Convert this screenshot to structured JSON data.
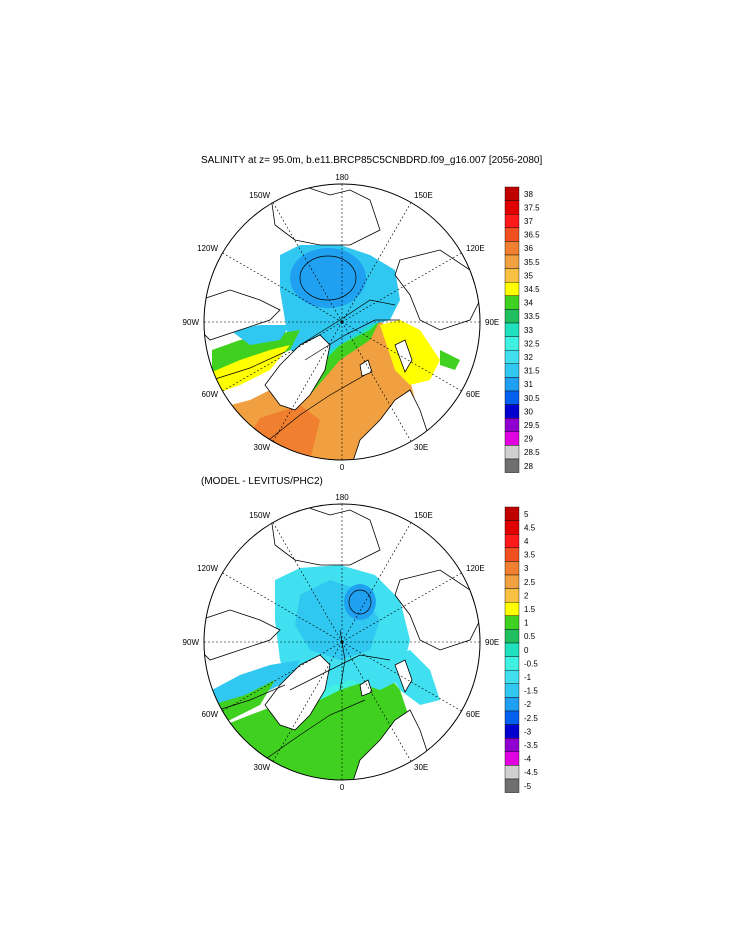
{
  "panels": [
    {
      "title": "SALINITY at z=  95.0m, b.e11.BRCP85C5CNBDRD.f09_g16.007 [2056-2080]",
      "lon_labels": {
        "180": "180",
        "150E": "150E",
        "120E": "120E",
        "90E": "90E",
        "60E": "60E",
        "30E": "30E",
        "0": "0",
        "30W": "30W",
        "60W": "60W",
        "90W": "90W",
        "120W": "120W",
        "150W": "150W"
      },
      "colorbar": {
        "labels": [
          "38",
          "37.5",
          "37",
          "36.5",
          "36",
          "35.5",
          "35",
          "34.5",
          "34",
          "33.5",
          "33",
          "32.5",
          "32",
          "31.5",
          "31",
          "30.5",
          "30",
          "29.5",
          "29",
          "28.5",
          "28"
        ],
        "colors": [
          "#c00000",
          "#e00000",
          "#ff1a1a",
          "#f05020",
          "#f08030",
          "#f0a040",
          "#f8c040",
          "#ffff00",
          "#40d020",
          "#20c060",
          "#20e0c0",
          "#40f0e0",
          "#40e0f0",
          "#30c8f0",
          "#20a0f0",
          "#0060f0",
          "#0000d0",
          "#9000d0",
          "#e000e0",
          "#d0d0d0",
          "#707070"
        ]
      }
    },
    {
      "title": "(MODEL - LEVITUS/PHC2)",
      "lon_labels": {
        "180": "180",
        "150E": "150E",
        "120E": "120E",
        "90E": "90E",
        "60E": "60E",
        "30E": "30E",
        "0": "0",
        "30W": "30W",
        "60W": "60W",
        "90W": "90W",
        "120W": "120W",
        "150W": "150W"
      },
      "colorbar": {
        "labels": [
          "5",
          "4.5",
          "4",
          "3.5",
          "3",
          "2.5",
          "2",
          "1.5",
          "1",
          "0.5",
          "0",
          "-0.5",
          "-1",
          "-1.5",
          "-2",
          "-2.5",
          "-3",
          "-3.5",
          "-4",
          "-4.5",
          "-5"
        ],
        "colors": [
          "#c00000",
          "#e00000",
          "#ff1a1a",
          "#f05020",
          "#f08030",
          "#f0a040",
          "#f8c040",
          "#ffff00",
          "#40d020",
          "#20c060",
          "#20e0c0",
          "#40f0e0",
          "#40e0f0",
          "#30c8f0",
          "#20a0f0",
          "#0060f0",
          "#0000d0",
          "#9000d0",
          "#e000e0",
          "#d0d0d0",
          "#707070"
        ]
      }
    }
  ],
  "colors": {
    "frame": "#000000",
    "land": "#ffffff"
  }
}
